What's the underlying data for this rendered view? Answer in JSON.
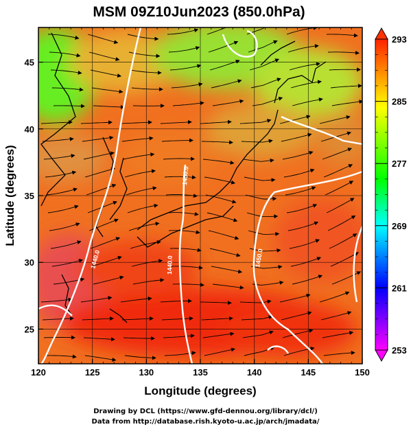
{
  "title": "MSM 09Z10Jun2023 (850.0hPa)",
  "map": {
    "xlabel": "Longitude (degrees)",
    "ylabel": "Latitude  (degrees)",
    "lon_range": [
      120,
      150
    ],
    "lat_range": [
      22.4,
      47.6
    ],
    "lon_ticks": [
      "120",
      "125",
      "130",
      "135",
      "140",
      "145",
      "150"
    ],
    "lat_ticks": [
      "25",
      "30",
      "35",
      "40",
      "45"
    ],
    "grid": true,
    "contour_labels": [
      "1440.0",
      "1440.0",
      "1450.0",
      "1450.0"
    ]
  },
  "colorbar": {
    "min": 253,
    "max": 293,
    "tick_labels": [
      "293",
      "285",
      "277",
      "269",
      "261",
      "253"
    ],
    "colors": [
      "#f0f",
      "#00f",
      "#0ff",
      "#0f0",
      "#ff0",
      "#f00"
    ]
  },
  "credits": {
    "line1": "Drawing by DCL (https://www.gfd-dennou.org/library/dcl/)",
    "line2": "Data from http://database.rish.kyoto-u.ac.jp/arch/jmadata/"
  }
}
